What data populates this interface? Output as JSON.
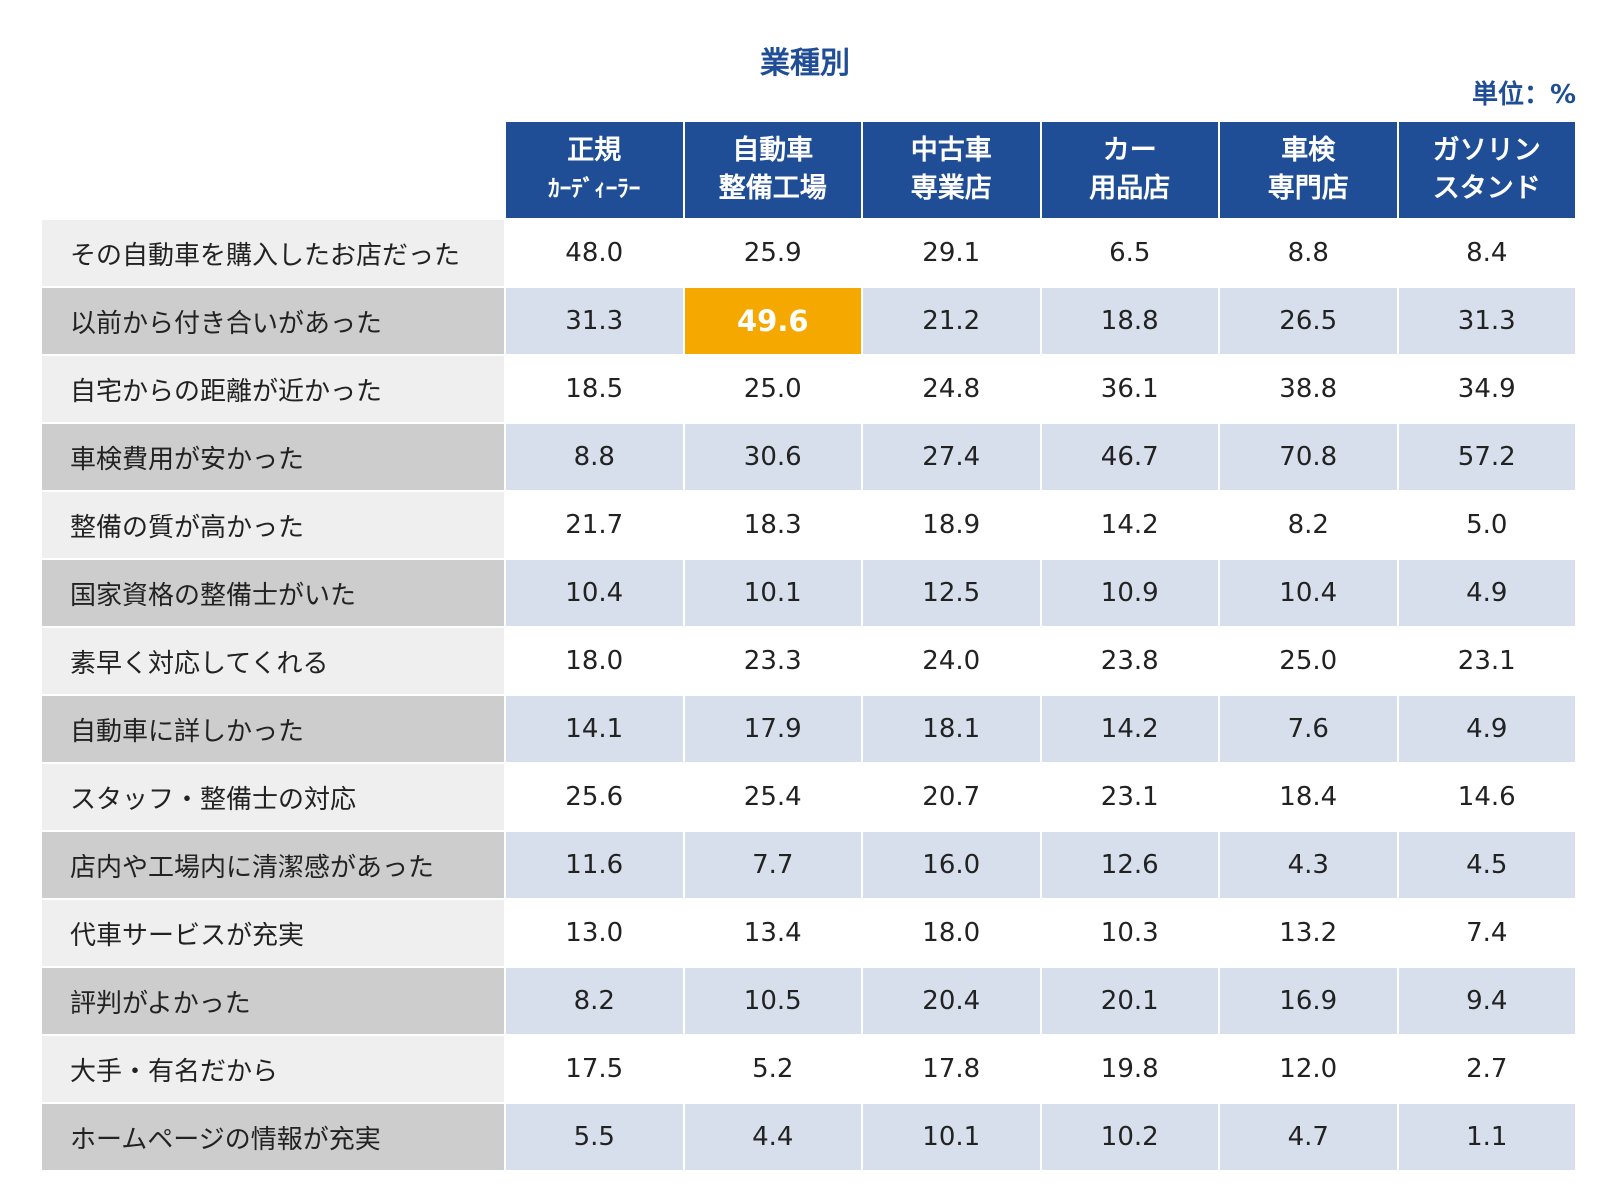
{
  "title": "業種別",
  "unit": "単位：%",
  "colors": {
    "header_bg": "#1f4e96",
    "title_text": "#1f4e96",
    "highlight": "#f5a800",
    "odd_row_label_bg": "#efefef",
    "even_row_label_bg": "#cdcdcd",
    "even_row_value_bg": "#d6dfeb"
  },
  "chart_data": {
    "type": "table",
    "title": "業種別",
    "unit": "単位：%",
    "columns": [
      {
        "line1": "正規",
        "line2": "ｶｰﾃﾞｨｰﾗｰ"
      },
      {
        "line1": "自動車",
        "line2": "整備工場"
      },
      {
        "line1": "中古車",
        "line2": "専業店"
      },
      {
        "line1": "カー",
        "line2": "用品店"
      },
      {
        "line1": "車検",
        "line2": "専門店"
      },
      {
        "line1": "ガソリン",
        "line2": "スタンド"
      }
    ],
    "rows": [
      {
        "label": "その自動車を購入したお店だった",
        "values": [
          "48.0",
          "25.9",
          "29.1",
          "6.5",
          "8.8",
          "8.4"
        ]
      },
      {
        "label": "以前から付き合いがあった",
        "values": [
          "31.3",
          "49.6",
          "21.2",
          "18.8",
          "26.5",
          "31.3"
        ]
      },
      {
        "label": "自宅からの距離が近かった",
        "values": [
          "18.5",
          "25.0",
          "24.8",
          "36.1",
          "38.8",
          "34.9"
        ]
      },
      {
        "label": "車検費用が安かった",
        "values": [
          "8.8",
          "30.6",
          "27.4",
          "46.7",
          "70.8",
          "57.2"
        ]
      },
      {
        "label": "整備の質が高かった",
        "values": [
          "21.7",
          "18.3",
          "18.9",
          "14.2",
          "8.2",
          "5.0"
        ]
      },
      {
        "label": "国家資格の整備士がいた",
        "values": [
          "10.4",
          "10.1",
          "12.5",
          "10.9",
          "10.4",
          "4.9"
        ]
      },
      {
        "label": "素早く対応してくれる",
        "values": [
          "18.0",
          "23.3",
          "24.0",
          "23.8",
          "25.0",
          "23.1"
        ]
      },
      {
        "label": "自動車に詳しかった",
        "values": [
          "14.1",
          "17.9",
          "18.1",
          "14.2",
          "7.6",
          "4.9"
        ]
      },
      {
        "label": "スタッフ・整備士の対応",
        "values": [
          "25.6",
          "25.4",
          "20.7",
          "23.1",
          "18.4",
          "14.6"
        ]
      },
      {
        "label": "店内や工場内に清潔感があった",
        "values": [
          "11.6",
          "7.7",
          "16.0",
          "12.6",
          "4.3",
          "4.5"
        ]
      },
      {
        "label": "代車サービスが充実",
        "values": [
          "13.0",
          "13.4",
          "18.0",
          "10.3",
          "13.2",
          "7.4"
        ]
      },
      {
        "label": "評判がよかった",
        "values": [
          "8.2",
          "10.5",
          "20.4",
          "20.1",
          "16.9",
          "9.4"
        ]
      },
      {
        "label": "大手・有名だから",
        "values": [
          "17.5",
          "5.2",
          "17.8",
          "19.8",
          "12.0",
          "2.7"
        ]
      },
      {
        "label": "ホームページの情報が充実",
        "values": [
          "5.5",
          "4.4",
          "10.1",
          "10.2",
          "4.7",
          "1.1"
        ]
      }
    ],
    "highlight": {
      "row": 1,
      "col": 1
    }
  }
}
